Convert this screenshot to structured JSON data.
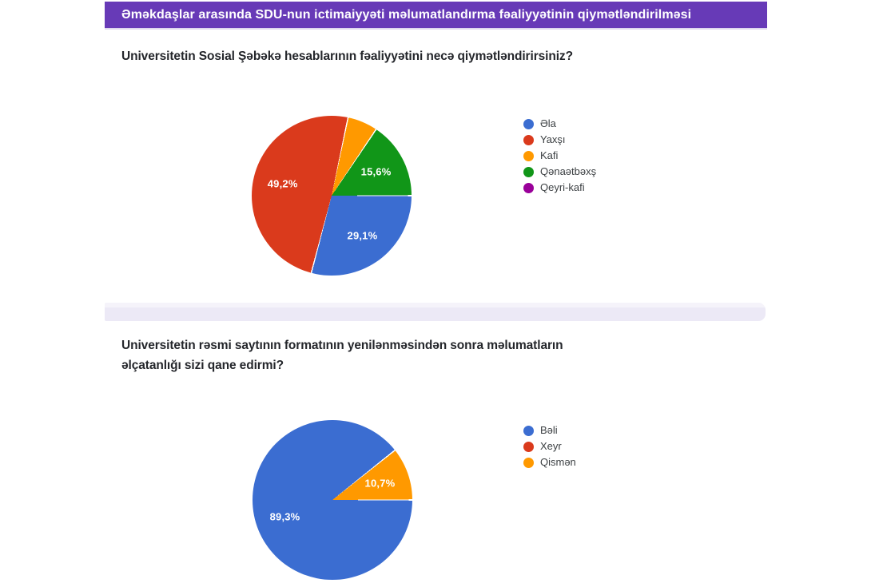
{
  "header": {
    "title": "Əməkdaşlar arasında SDU-nun ictimaiyyəti məlumatlandırma fəaliyyətinin qiymətləndirilməsi",
    "background": "#673ab7",
    "text_color": "#ffffff"
  },
  "questions": [
    {
      "lines": [
        "Universitetin Sosial Şəbəkə hesablarının fəaliyyətini necə qiymətləndirirsiniz?"
      ]
    },
    {
      "lines": [
        "Universitetin rəsmi saytının formatının yenilənməsindən sonra məlumatların",
        "əlçatanlığı sizi qane edirmi?"
      ]
    }
  ],
  "chart_data": [
    {
      "type": "pie",
      "title": "Universitetin Sosial Şəbəkə hesablarının fəaliyyətini necə qiymətləndirirsiniz?",
      "categories": [
        "Əla",
        "Yaxşı",
        "Kafi",
        "Qənaətbəxş",
        "Qeyri-kafi"
      ],
      "values": [
        29.1,
        49.2,
        6.1,
        15.6,
        0
      ],
      "colors": [
        "#3b6dd1",
        "#da3a1c",
        "#ff9900",
        "#119618",
        "#990099"
      ],
      "slice_labels": [
        "29,1%",
        "49,2%",
        null,
        "15,6%",
        null
      ],
      "start_angle_deg": 90,
      "direction": "clockwise",
      "legend_position": "right"
    },
    {
      "type": "pie",
      "title": "Universitetin rəsmi saytının formatının yenilənməsindən sonra məlumatların əlçatanlığı sizi qane edirmi?",
      "categories": [
        "Bəli",
        "Xeyr",
        "Qismən"
      ],
      "values": [
        89.3,
        0,
        10.7
      ],
      "colors": [
        "#3b6dd1",
        "#da3a1c",
        "#ff9900"
      ],
      "slice_labels": [
        "89,3%",
        null,
        "10,7%"
      ],
      "start_angle_deg": 90,
      "direction": "clockwise",
      "legend_position": "right"
    }
  ]
}
